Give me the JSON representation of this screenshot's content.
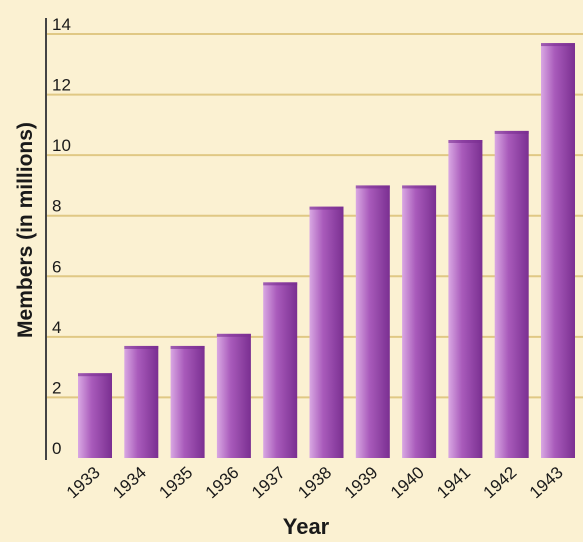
{
  "chart_data": {
    "type": "bar",
    "title": "",
    "xlabel": "Year",
    "ylabel": "Members (in millions)",
    "categories": [
      "1933",
      "1934",
      "1935",
      "1936",
      "1937",
      "1938",
      "1939",
      "1940",
      "1941",
      "1942",
      "1943"
    ],
    "values": [
      2.8,
      3.7,
      3.7,
      4.1,
      5.8,
      8.3,
      9.0,
      9.0,
      10.5,
      10.8,
      13.7
    ],
    "ylim": [
      0,
      14
    ],
    "yticks": [
      0,
      2,
      4,
      6,
      8,
      10,
      12,
      14
    ],
    "grid": true,
    "colors": {
      "background": "#fbf1d2",
      "gridline": "#e0c884",
      "bar_light": "#d9a8e3",
      "bar_mid": "#a95bbb",
      "bar_dark": "#7a2f91"
    }
  }
}
